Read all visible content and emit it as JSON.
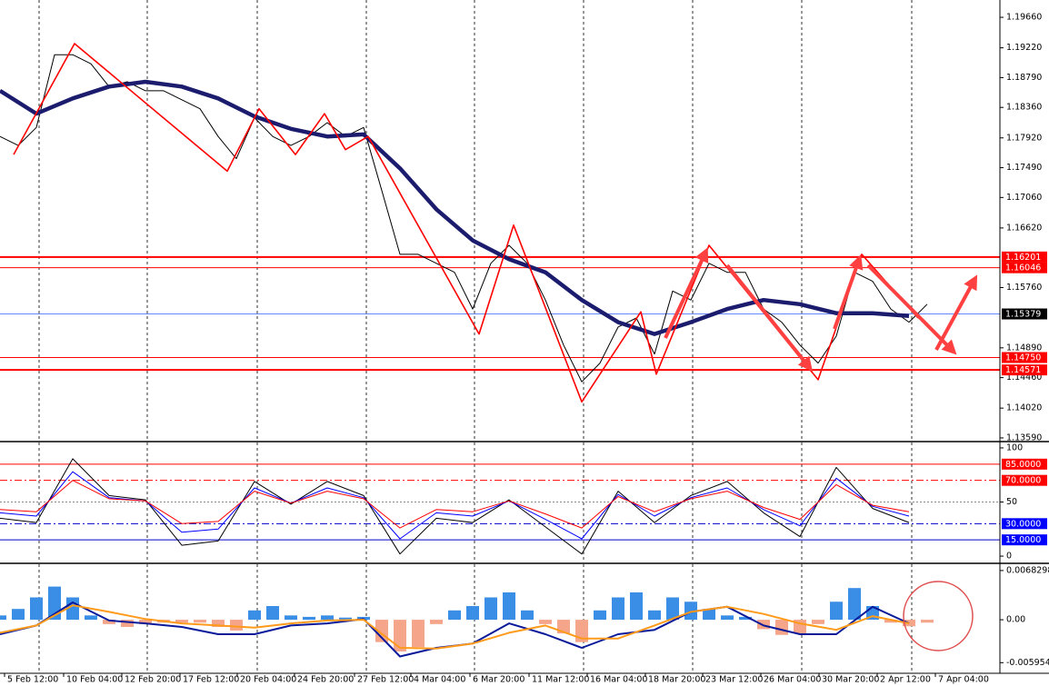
{
  "chart_data": [
    {
      "type": "line",
      "xlim": [
        0,
        55
      ],
      "xgrid": [
        2.15,
        8.1,
        14.15,
        20.15,
        26.1,
        32.1,
        38.1,
        44.1,
        50.15
      ],
      "ylim": [
        1.1355,
        1.1991
      ],
      "yticks": [
        {
          "value": 1.1966,
          "label": "1.19660"
        },
        {
          "value": 1.1922,
          "label": "1.19220"
        },
        {
          "value": 1.1879,
          "label": "1.18790"
        },
        {
          "value": 1.1836,
          "label": "1.18360"
        },
        {
          "value": 1.1792,
          "label": "1.17920"
        },
        {
          "value": 1.1749,
          "label": "1.17490"
        },
        {
          "value": 1.1706,
          "label": "1.17060"
        },
        {
          "value": 1.1662,
          "label": "1.16620"
        },
        {
          "value": 1.1576,
          "label": "1.15760"
        },
        {
          "value": 1.1489,
          "label": "1.14890"
        },
        {
          "value": 1.1446,
          "label": "1.14460"
        },
        {
          "value": 1.1402,
          "label": "1.14020"
        },
        {
          "value": 1.1359,
          "label": "1.13590"
        }
      ],
      "hlines": [
        {
          "value": 1.16201,
          "color": "#ff0000",
          "width": 2,
          "box": "#ff0000"
        },
        {
          "value": 1.16046,
          "color": "#ff0000",
          "width": 1,
          "box": "#ff0000"
        },
        {
          "value": 1.1475,
          "label": "1.14750",
          "color": "#ff0000",
          "width": 1,
          "box": "#ff0000"
        },
        {
          "value": 1.14571,
          "color": "#ff0000",
          "width": 2,
          "box": "#ff0000"
        },
        {
          "value": 1.15379,
          "color": "#3060ff",
          "width": 0.8,
          "box": "#000000"
        }
      ],
      "x": [
        0,
        1,
        2,
        3,
        4,
        5,
        6,
        7,
        8,
        9,
        10,
        11,
        12,
        13,
        14,
        15,
        16,
        17,
        18,
        19,
        20,
        21,
        22,
        23,
        24,
        25,
        26,
        27,
        28,
        29,
        30,
        31,
        32,
        33,
        34,
        35,
        36,
        37,
        38,
        39,
        40,
        41,
        42,
        43,
        44,
        45,
        46,
        47,
        48,
        49,
        50,
        51
      ],
      "series": [
        {
          "type": "line",
          "color": "#000000",
          "width": 1,
          "values": [
            1.1794,
            1.1781,
            1.1807,
            1.1912,
            1.1912,
            1.1899,
            1.1866,
            1.1873,
            1.186,
            1.186,
            1.1847,
            1.1834,
            1.1794,
            1.1762,
            1.1821,
            1.1794,
            1.1781,
            1.1794,
            1.1814,
            1.1794,
            1.1807,
            1.1716,
            1.1624,
            1.1624,
            1.1611,
            1.1598,
            1.1545,
            1.1611,
            1.1637,
            1.1611,
            1.1558,
            1.1493,
            1.144,
            1.1467,
            1.1519,
            1.1532,
            1.148,
            1.1571,
            1.1558,
            1.1611,
            1.1598,
            1.1598,
            1.1545,
            1.1526,
            1.1493,
            1.1467,
            1.1506,
            1.1598,
            1.1585,
            1.1545,
            1.1526,
            1.1552
          ]
        },
        {
          "type": "line",
          "color": "#1c1c6e",
          "width": 4.5,
          "x": [
            0,
            2,
            4,
            6,
            8,
            10,
            12,
            14,
            16,
            18,
            20,
            22,
            24,
            26,
            28,
            30,
            32,
            34,
            36,
            38,
            40,
            42,
            44,
            46,
            48,
            50
          ],
          "values": [
            1.186,
            1.1827,
            1.1849,
            1.1866,
            1.1873,
            1.1866,
            1.1849,
            1.1823,
            1.1805,
            1.1794,
            1.1797,
            1.1748,
            1.1689,
            1.1644,
            1.1617,
            1.1598,
            1.1558,
            1.1526,
            1.1509,
            1.1526,
            1.1545,
            1.1558,
            1.1552,
            1.1539,
            1.1539,
            1.1535
          ]
        },
        {
          "type": "line",
          "color": "#ff0000",
          "width": 1.6,
          "x": [
            0.75,
            4.1,
            12.5,
            14.25,
            16.25,
            17.85,
            19,
            20.25,
            26.35,
            28.25,
            32,
            35.25,
            36.1,
            39,
            45,
            47.4,
            50.5
          ],
          "values": [
            1.1768,
            1.1928,
            1.1744,
            1.1834,
            1.1768,
            1.1827,
            1.1775,
            1.1794,
            1.1509,
            1.1666,
            1.1411,
            1.1541,
            1.1451,
            1.1637,
            1.1443,
            1.1624,
            1.1532
          ]
        }
      ]
    },
    {
      "type": "line",
      "ylim": [
        -5,
        105
      ],
      "yticks": [
        100,
        50,
        0
      ],
      "hlines": [
        {
          "value": 85,
          "label": "85.0000",
          "color": "#ff0000",
          "width": 1,
          "box": "#ff0000"
        },
        {
          "value": 70,
          "label": "70.0000",
          "color": "#ff0000",
          "width": 1,
          "dash": "8 3 2 3",
          "box": "#ff0000"
        },
        {
          "value": 50,
          "color": "#888888",
          "width": 1,
          "dash": "2 2"
        },
        {
          "value": 30,
          "label": "30.0000",
          "color": "#0000cc",
          "width": 1,
          "dash": "8 3 2 3",
          "box": "#0000ff"
        },
        {
          "value": 15,
          "label": "15.0000",
          "color": "#0000cc",
          "width": 1,
          "box": "#0000ff"
        }
      ],
      "x": [
        0,
        2,
        4,
        6,
        8,
        10,
        12,
        14,
        16,
        18,
        20,
        22,
        24,
        26,
        28,
        30,
        32,
        34,
        36,
        38,
        40,
        42,
        44,
        46,
        48,
        50
      ],
      "series": [
        {
          "type": "line",
          "color": "#000000",
          "width": 1,
          "values": [
            35,
            31,
            90,
            56,
            52,
            10,
            14,
            69,
            48,
            69,
            56,
            2,
            35,
            31,
            52,
            27,
            2,
            60,
            31,
            56,
            69,
            40,
            18,
            82,
            44,
            31
          ]
        },
        {
          "type": "line",
          "color": "#0000ff",
          "width": 1,
          "values": [
            40,
            37,
            78,
            54,
            51,
            22,
            25,
            63,
            49,
            63,
            54,
            16,
            40,
            37,
            51,
            34,
            16,
            57,
            37,
            54,
            63,
            43,
            28,
            72,
            46,
            37
          ]
        },
        {
          "type": "line",
          "color": "#ff0000",
          "width": 1,
          "values": [
            43,
            41,
            70,
            53,
            51,
            30,
            32,
            60,
            49,
            60,
            53,
            26,
            43,
            41,
            51,
            39,
            26,
            55,
            41,
            53,
            60,
            45,
            34,
            66,
            47,
            41
          ]
        }
      ]
    },
    {
      "type": "line",
      "ylim": [
        -0.0073,
        0.0077
      ],
      "yticks": [
        0.0068298,
        {
          "value": 0,
          "label": "0.00"
        },
        {
          "value": -0.005954,
          "label": "-0.0059540"
        }
      ],
      "xticks": [
        {
          "value": 0.25,
          "label": "5 Feb 12:00"
        },
        {
          "value": 3.5,
          "label": "10 Feb 04:00"
        },
        {
          "value": 6.7,
          "label": "12 Feb 20:00"
        },
        {
          "value": 9.9,
          "label": "17 Feb 12:00"
        },
        {
          "value": 13.05,
          "label": "20 Feb 04:00"
        },
        {
          "value": 16.2,
          "label": "24 Feb 20:00"
        },
        {
          "value": 19.5,
          "label": "27 Feb 12:00"
        },
        {
          "value": 22.6,
          "label": "4 Mar 04:00"
        },
        {
          "value": 25.85,
          "label": "6 Mar 20:00"
        },
        {
          "value": 29.1,
          "label": "11 Mar 12:00"
        },
        {
          "value": 32.3,
          "label": "16 Mar 04:00"
        },
        {
          "value": 35.5,
          "label": "18 Mar 20:00"
        },
        {
          "value": 38.65,
          "label": "23 Mar 12:00"
        },
        {
          "value": 41.85,
          "label": "26 Mar 04:00"
        },
        {
          "value": 45.05,
          "label": "30 Mar 20:00"
        },
        {
          "value": 48.25,
          "label": "2 Apr 12:00"
        },
        {
          "value": 51.45,
          "label": "7 Apr 04:00"
        }
      ],
      "x": [
        0,
        1,
        2,
        3,
        4,
        5,
        6,
        7,
        8,
        9,
        10,
        11,
        12,
        13,
        14,
        15,
        16,
        17,
        18,
        19,
        20,
        21,
        22,
        23,
        24,
        25,
        26,
        27,
        28,
        29,
        30,
        31,
        32,
        33,
        34,
        35,
        36,
        37,
        38,
        39,
        40,
        41,
        42,
        43,
        44,
        45,
        46,
        47,
        48,
        49,
        50,
        51
      ],
      "series": [
        {
          "type": "bar",
          "color": "#3a8ee6",
          "negative_color": "#f4a58a",
          "values": [
            0.0006,
            0.0015,
            0.0031,
            0.0046,
            0.0031,
            0.0006,
            -0.0006,
            -0.001,
            -0.0006,
            -0.0004,
            -0.0004,
            -0.0004,
            -0.001,
            -0.0015,
            0.0013,
            0.0019,
            0.0006,
            0.0004,
            0.0006,
            0.0003,
            0.0004,
            -0.0031,
            -0.0044,
            -0.0038,
            -0.0006,
            0.0013,
            0.0019,
            0.0031,
            0.0038,
            0.0013,
            -0.0006,
            -0.0019,
            -0.0031,
            0.0013,
            0.0031,
            0.0038,
            0.0013,
            0.0031,
            0.0025,
            0.0015,
            0.0006,
            0.0004,
            -0.0013,
            -0.0021,
            -0.0019,
            -0.0006,
            0.0025,
            0.0044,
            0.0019,
            -0.0004,
            -0.0009,
            -0.0004
          ]
        },
        {
          "type": "line",
          "color": "#0a1a9a",
          "width": 2,
          "x": [
            0,
            2,
            4,
            6,
            8,
            10,
            12,
            14,
            16,
            18,
            20,
            22,
            24,
            26,
            28,
            30,
            32,
            34,
            36,
            38,
            40,
            42,
            44,
            46,
            48,
            50
          ],
          "values": [
            -0.002,
            -0.0008,
            0.0024,
            -0.0001,
            -0.0005,
            -0.001,
            -0.002,
            -0.002,
            -0.0008,
            -0.0005,
            0.0001,
            -0.0051,
            -0.0039,
            -0.0033,
            -0.0005,
            -0.002,
            -0.0039,
            -0.002,
            -0.0014,
            0.0011,
            0.0018,
            -0.0008,
            -0.002,
            -0.002,
            0.0018,
            -0.0005
          ]
        },
        {
          "type": "line",
          "color": "#ff9a1a",
          "width": 2,
          "x": [
            0,
            2,
            4,
            6,
            8,
            10,
            12,
            14,
            16,
            18,
            20,
            22,
            24,
            26,
            28,
            30,
            32,
            34,
            36,
            38,
            40,
            42,
            44,
            46,
            48,
            50
          ],
          "values": [
            -0.0018,
            -0.0008,
            0.002,
            0.0011,
            0.0001,
            -0.0005,
            -0.0008,
            -0.0011,
            -0.0005,
            -0.0001,
            0,
            -0.0039,
            -0.004,
            -0.0033,
            -0.0018,
            -0.0008,
            -0.0026,
            -0.0026,
            -0.0008,
            0.0011,
            0.0018,
            0.0008,
            -0.0005,
            -0.0014,
            0.0005,
            -0.0005
          ]
        }
      ]
    }
  ]
}
